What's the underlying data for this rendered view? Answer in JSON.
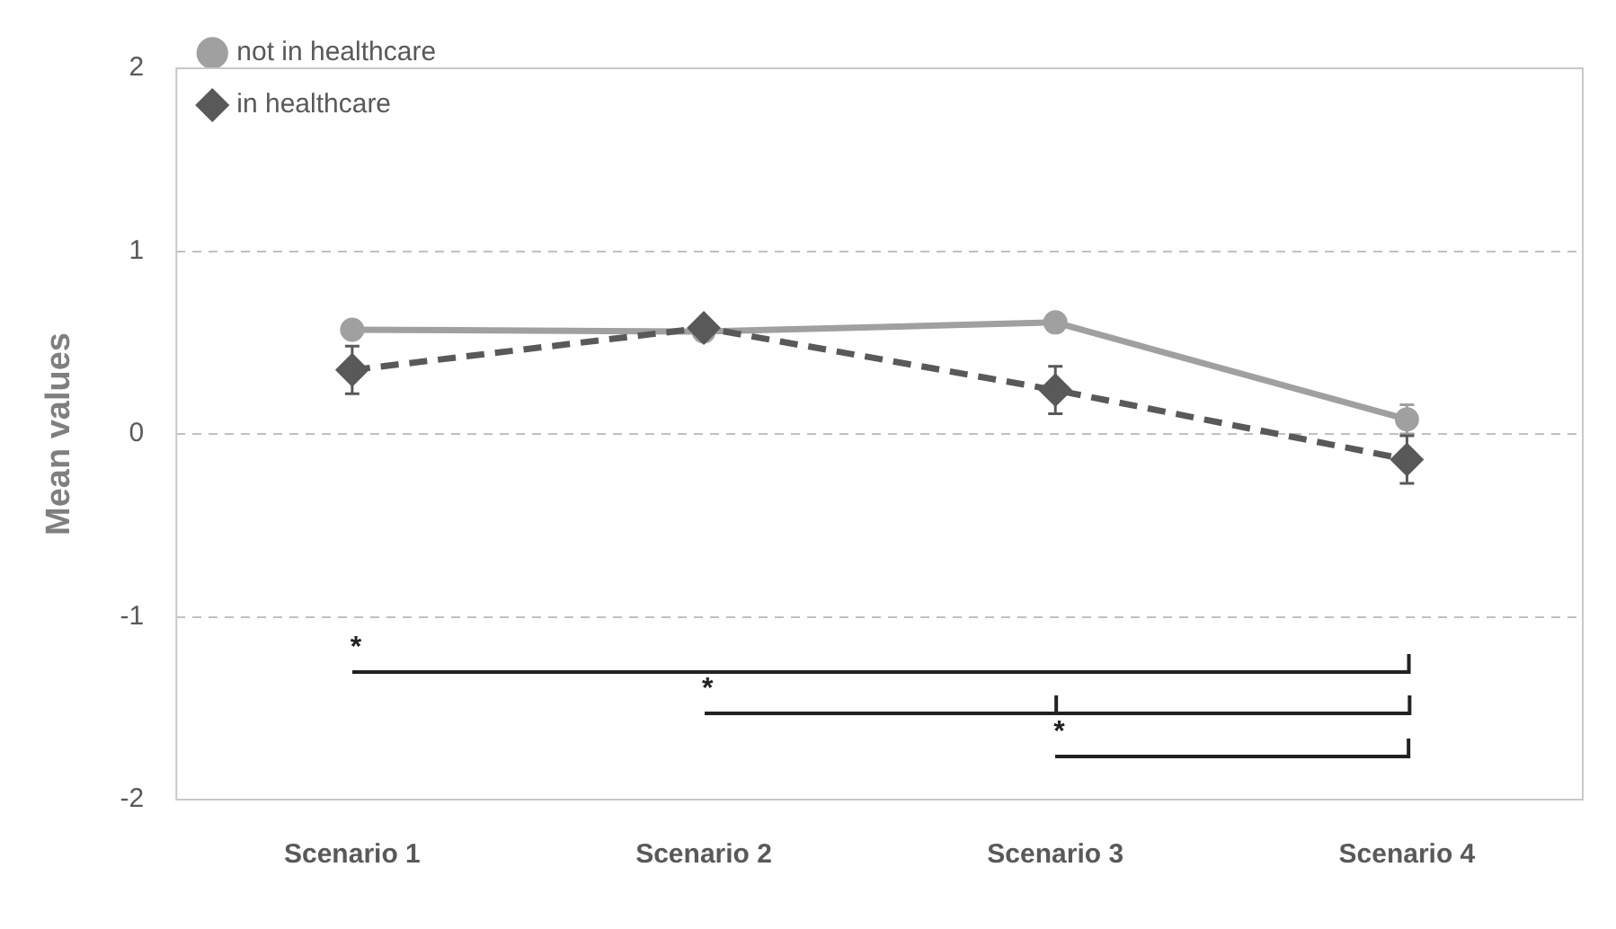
{
  "chart_data": {
    "type": "line",
    "ylabel": "Mean values",
    "categories": [
      "Scenario 1",
      "Scenario 2",
      "Scenario 3",
      "Scenario 4"
    ],
    "series": [
      {
        "name": "not in healthcare",
        "color": "#a0a0a0",
        "marker": "circle",
        "line_style": "solid",
        "values": [
          0.57,
          0.56,
          0.61,
          0.08
        ],
        "errors": [
          null,
          null,
          null,
          0.08
        ]
      },
      {
        "name": "in healthcare",
        "color": "#595959",
        "marker": "diamond",
        "line_style": "dashed",
        "values": [
          0.35,
          0.58,
          0.24,
          -0.14
        ],
        "errors": [
          0.13,
          null,
          0.13,
          0.13
        ]
      }
    ],
    "ylim": [
      -2,
      2
    ],
    "yticks": [
      -2,
      -1,
      0,
      1,
      2
    ],
    "grid": "y",
    "legend": "top left",
    "annotations": [
      "*",
      "*",
      "*"
    ]
  }
}
